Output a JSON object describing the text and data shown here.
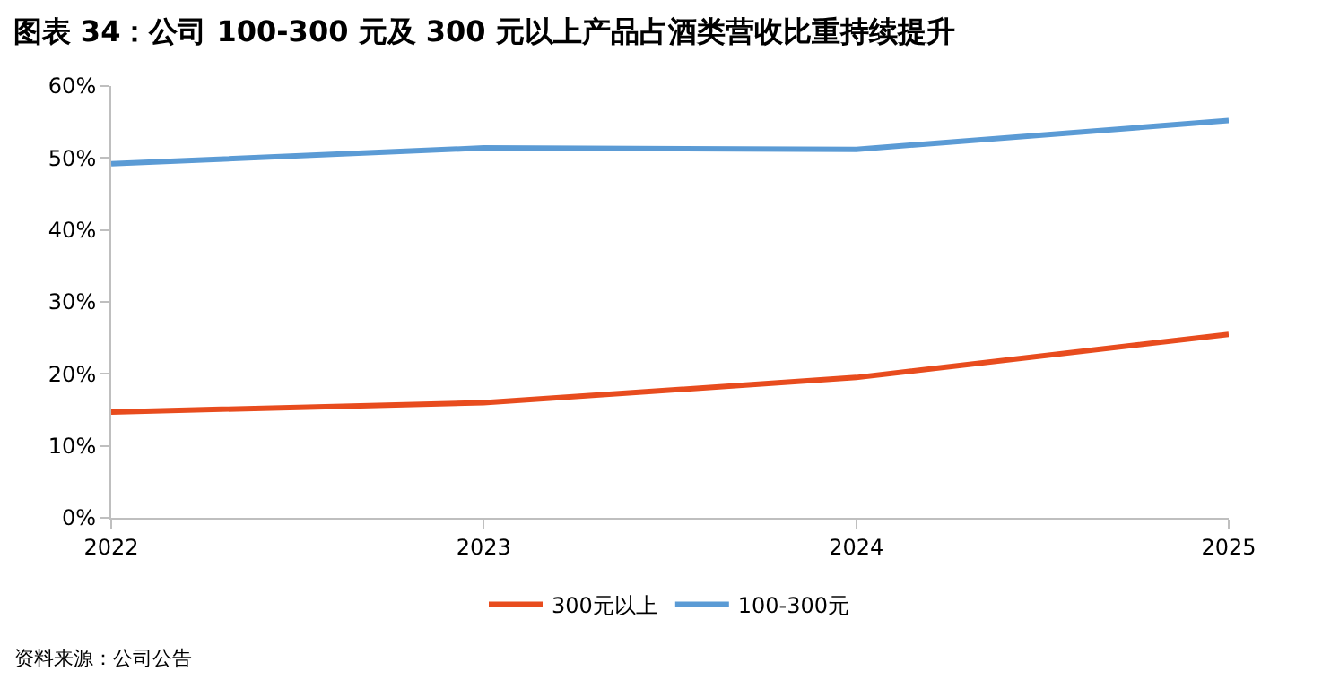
{
  "chart_data": {
    "type": "line",
    "title": "图表 34：公司 100-300 元及 300 元以上产品占酒类营收比重持续提升",
    "x": [
      2022,
      2023,
      2024,
      2025
    ],
    "xlim": [
      2022,
      2025
    ],
    "xticks": [
      2022,
      2023,
      2024,
      2025
    ],
    "ylim": [
      0,
      60
    ],
    "yticks": [
      {
        "value": 0,
        "label": "0%"
      },
      {
        "value": 10,
        "label": "10%"
      },
      {
        "value": 20,
        "label": "20%"
      },
      {
        "value": 30,
        "label": "30%"
      },
      {
        "value": 40,
        "label": "40%"
      },
      {
        "value": 50,
        "label": "50%"
      },
      {
        "value": 60,
        "label": "60%"
      }
    ],
    "series": [
      {
        "name": "300元以上",
        "color": "#e84c1e",
        "values": [
          14.7,
          16.0,
          19.5,
          25.5
        ]
      },
      {
        "name": "100-300元",
        "color": "#5b9bd5",
        "values": [
          49.2,
          51.4,
          51.2,
          55.2
        ]
      }
    ],
    "legend": "bottom",
    "marker": "none",
    "line_style": "solid",
    "annotations": [
      "资料来源：公司公告"
    ]
  }
}
